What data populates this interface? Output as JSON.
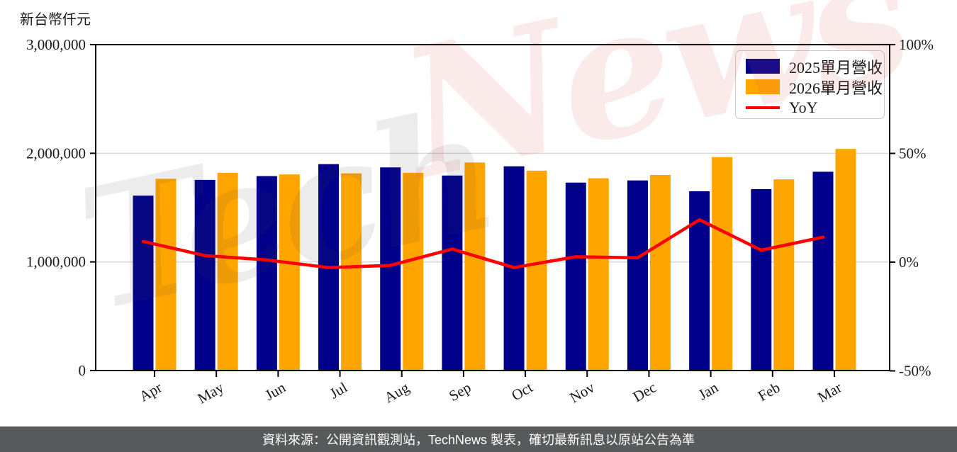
{
  "unit_label": "新台幣仟元",
  "watermark": {
    "text": "TechNews",
    "part_gray": "Tech",
    "part_pink": "News"
  },
  "footer": {
    "text": "資料來源：公開資訊觀測站，TechNews 製表，確切最新訊息以原站公告為準",
    "bg_color": "#58595B",
    "text_color": "#FFFFFF"
  },
  "chart_data": {
    "type": "bar",
    "title": "",
    "categories": [
      "Apr",
      "May",
      "Jun",
      "Jul",
      "Aug",
      "Sep",
      "Oct",
      "Nov",
      "Dec",
      "Jan",
      "Feb",
      "Mar"
    ],
    "series": [
      {
        "name": "2025單月營收",
        "type": "bar",
        "color": "#00008B",
        "values": [
          1610000,
          1755000,
          1790000,
          1900000,
          1870000,
          1795000,
          1880000,
          1730000,
          1750000,
          1650000,
          1670000,
          1830000
        ]
      },
      {
        "name": "2026單月營收",
        "type": "bar",
        "color": "#FFA500",
        "values": [
          1765000,
          1820000,
          1805000,
          1815000,
          1820000,
          1915000,
          1840000,
          1770000,
          1800000,
          1965000,
          1760000,
          2040000
        ]
      },
      {
        "name": "YoY",
        "type": "line",
        "color": "#FF0000",
        "axis": "right",
        "values_pct": [
          9.5,
          3,
          1,
          -2.5,
          -1.5,
          6,
          -2.5,
          2.5,
          2,
          19.5,
          5.5,
          11.5
        ]
      }
    ],
    "left_axis": {
      "title": "新台幣仟元",
      "tick_labels": [
        "0",
        "1,000,000",
        "2,000,000",
        "3,000,000"
      ],
      "tick_values": [
        0,
        1000000,
        2000000,
        3000000
      ],
      "range": [
        0,
        3000000
      ]
    },
    "right_axis": {
      "tick_labels": [
        "-50%",
        "0%",
        "50%",
        "100%"
      ],
      "tick_values": [
        -50,
        0,
        50,
        100
      ],
      "range": [
        -50,
        100
      ]
    },
    "grid": {
      "horizontal": true,
      "color": "#D9D9D9"
    },
    "legend_position": "upper right",
    "spine_color": "#000000"
  }
}
